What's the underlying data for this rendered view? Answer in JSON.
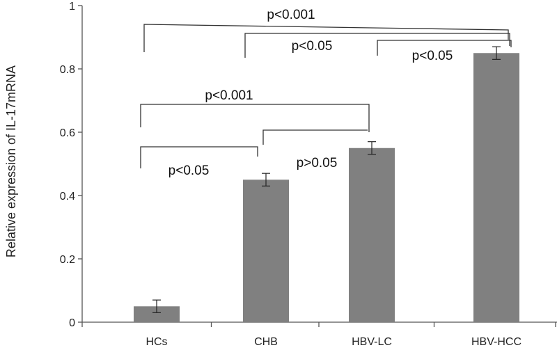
{
  "chart_data": {
    "type": "bar",
    "categories": [
      "HCs",
      "CHB",
      "HBV-LC",
      "HBV-HCC"
    ],
    "values": [
      0.05,
      0.45,
      0.55,
      0.85
    ],
    "errors": [
      0.02,
      0.02,
      0.02,
      0.02
    ],
    "title": "",
    "xlabel": "",
    "ylabel": "Relative expression of IL-17mRNA",
    "ylim": [
      0,
      1
    ],
    "yticks": [
      "0",
      "0.2",
      "0.4",
      "0.6",
      "0.8",
      "1"
    ],
    "grid": false,
    "bar_color": "#808080",
    "comparisons": [
      {
        "from": "HCs",
        "to": "HBV-HCC",
        "label": "p<0.001"
      },
      {
        "from": "CHB",
        "to": "HBV-HCC",
        "label": "p<0.05"
      },
      {
        "from": "HBV-LC",
        "to": "HBV-HCC",
        "label": "p<0.05"
      },
      {
        "from": "HCs",
        "to": "HBV-LC",
        "label": "p<0.001"
      },
      {
        "from": "CHB",
        "to": "HBV-LC",
        "label": "p>0.05"
      },
      {
        "from": "HCs",
        "to": "CHB",
        "label": "p<0.05"
      }
    ]
  }
}
